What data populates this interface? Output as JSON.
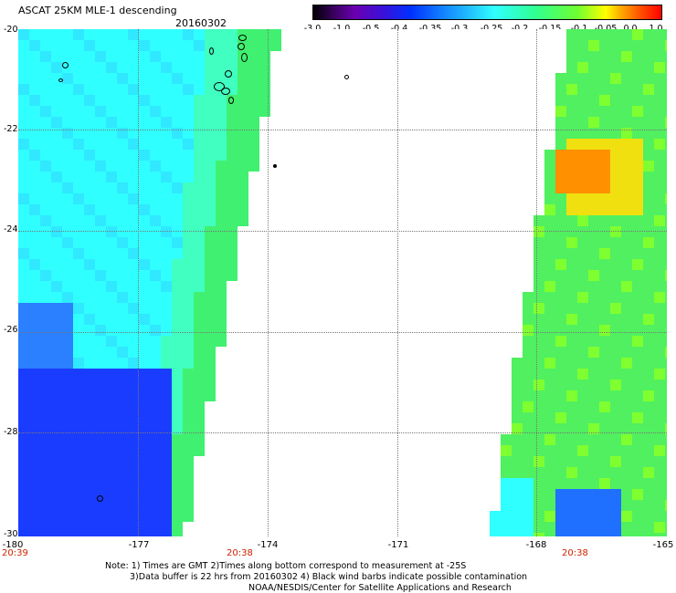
{
  "header": {
    "title": "ASCAT 25KM MLE-1 descending",
    "date": "20160302"
  },
  "colorbar": {
    "labels": [
      "-3.0",
      "-1.0",
      "-0.5",
      "-0.4",
      "-0.35",
      "-0.3",
      "-0.25",
      "-0.2",
      "-0.15",
      "-0.1",
      "-0.05",
      "0.0",
      "1.0"
    ]
  },
  "map": {
    "lon_range": [
      -180,
      -165
    ],
    "lat_range": [
      -30,
      -20
    ],
    "y_ticks": [
      "-20",
      "-22",
      "-24",
      "-26",
      "-28",
      "-30"
    ],
    "x_ticks": [
      "-180",
      "-177",
      "-174",
      "-171",
      "-168",
      "-165"
    ],
    "time_labels": [
      "20:39",
      "20:38",
      "20:38"
    ]
  },
  "notes": {
    "line1": "Note: 1) Times are GMT 2)Times along bottom correspond to measurement at -25S",
    "line2": "3)Data buffer is 22 hrs from 20160302 4) Black wind barbs indicate possible contamination",
    "line3": "NOAA/NESDIS/Center for Satellite Applications and Research"
  },
  "colors": {
    "low": "#0030ff",
    "mid": "#30ffff",
    "high": "#ff5000"
  }
}
